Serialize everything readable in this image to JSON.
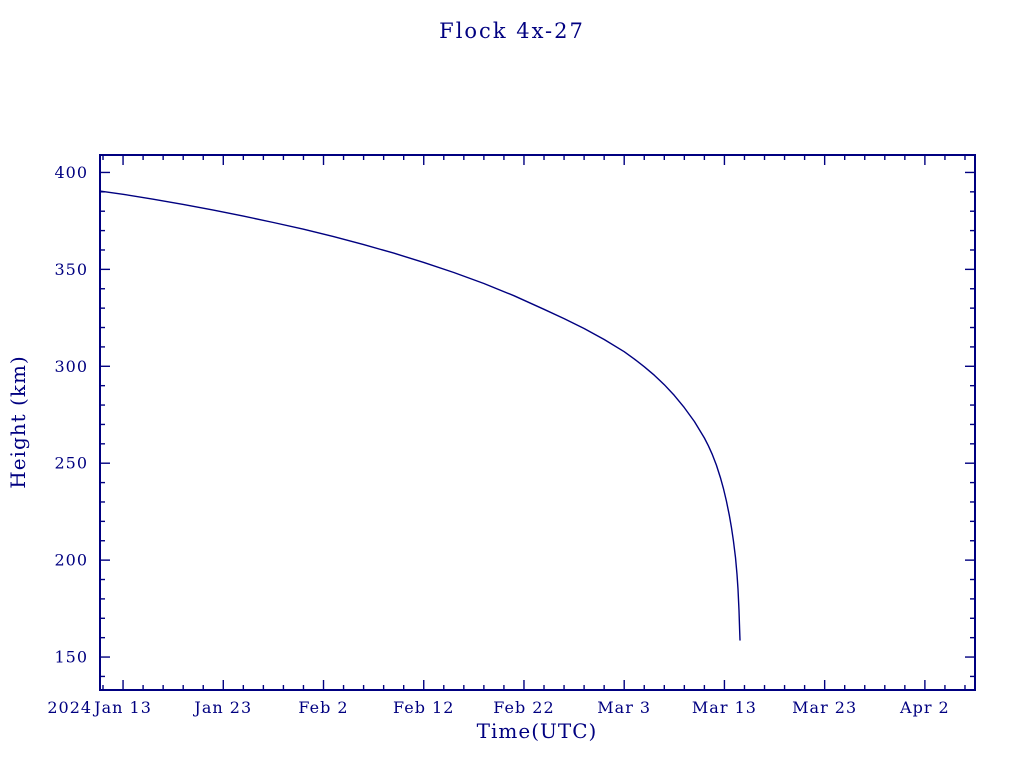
{
  "window": {
    "background_color": "#ffffff"
  },
  "chart_data": {
    "type": "line",
    "title": "Flock 4x-27",
    "xlabel": "Time(UTC)",
    "ylabel": "Height (km)",
    "year_label": "2024",
    "accent_color": "#000080",
    "line_color": "#000080",
    "grid": false,
    "legend": "none",
    "x_axis": {
      "unit": "days since 2024 Jan 13",
      "domain_days": [
        -2.3,
        85.0
      ],
      "major_ticks": [
        {
          "day": 0,
          "label": "Jan 13"
        },
        {
          "day": 10,
          "label": "Jan 23"
        },
        {
          "day": 20,
          "label": "Feb 2"
        },
        {
          "day": 30,
          "label": "Feb 12"
        },
        {
          "day": 40,
          "label": "Feb 22"
        },
        {
          "day": 50,
          "label": "Mar 3"
        },
        {
          "day": 60,
          "label": "Mar 13"
        },
        {
          "day": 70,
          "label": "Mar 23"
        },
        {
          "day": 80,
          "label": "Apr 2"
        }
      ],
      "minor_tick_step_days": 2
    },
    "y_axis": {
      "domain_km": [
        133,
        409
      ],
      "major_ticks": [
        150,
        200,
        250,
        300,
        350,
        400
      ],
      "minor_tick_step_km": 10
    },
    "series": [
      {
        "name": "height",
        "points": [
          [
            -2.3,
            390.4
          ],
          [
            0,
            388.7
          ],
          [
            3,
            386.2
          ],
          [
            6,
            383.5
          ],
          [
            9,
            380.6
          ],
          [
            12,
            377.5
          ],
          [
            15,
            374.2
          ],
          [
            18,
            370.7
          ],
          [
            21,
            366.9
          ],
          [
            24,
            362.8
          ],
          [
            27,
            358.4
          ],
          [
            30,
            353.6
          ],
          [
            33,
            348.4
          ],
          [
            36,
            342.7
          ],
          [
            39,
            336.4
          ],
          [
            42,
            329.4
          ],
          [
            44,
            324.6
          ],
          [
            46,
            319.5
          ],
          [
            48,
            313.8
          ],
          [
            50,
            307.5
          ],
          [
            51,
            303.8
          ],
          [
            52,
            299.8
          ],
          [
            53,
            295.4
          ],
          [
            54,
            290.5
          ],
          [
            55,
            285.0
          ],
          [
            56,
            278.7
          ],
          [
            57,
            271.5
          ],
          [
            58,
            263.0
          ],
          [
            58.4,
            259.0
          ],
          [
            58.8,
            254.4
          ],
          [
            59.2,
            249.0
          ],
          [
            59.6,
            242.6
          ],
          [
            59.9,
            237.0
          ],
          [
            60.2,
            230.5
          ],
          [
            60.5,
            222.9
          ],
          [
            60.7,
            217.0
          ],
          [
            60.9,
            210.0
          ],
          [
            61.1,
            201.3
          ],
          [
            61.25,
            192.7
          ],
          [
            61.35,
            185.0
          ],
          [
            61.45,
            174.0
          ],
          [
            61.52,
            163.0
          ],
          [
            61.55,
            158.8
          ]
        ]
      }
    ]
  }
}
